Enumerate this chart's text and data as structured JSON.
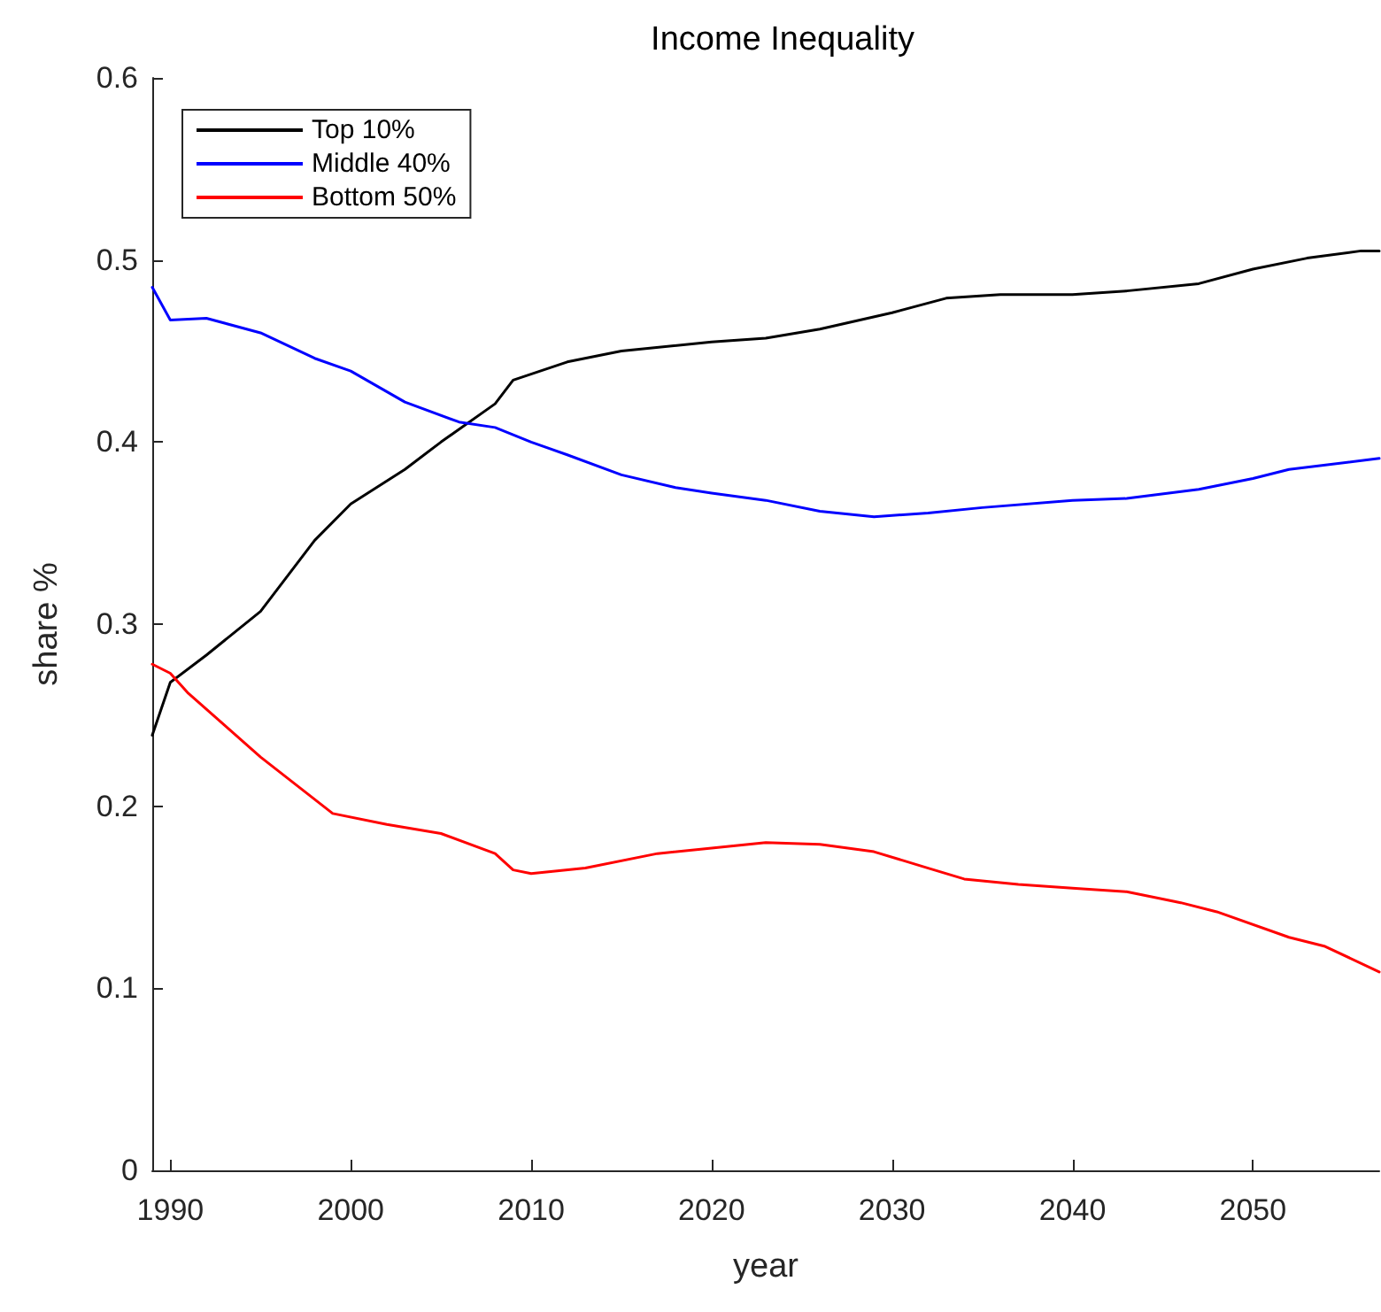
{
  "chart_data": {
    "type": "line",
    "title": "Income Inequality",
    "xlabel": "year",
    "ylabel": "share %",
    "xlim": [
      1989,
      2057
    ],
    "xticks": [
      1990,
      2000,
      2010,
      2020,
      2030,
      2040,
      2050
    ],
    "ylim": [
      0,
      0.6
    ],
    "yticks": [
      0,
      0.1,
      0.2,
      0.3,
      0.4,
      0.5,
      0.6
    ],
    "grid": false,
    "legend": "top left",
    "marker": "none",
    "line_style": "solid",
    "series": [
      {
        "name": "Top 10%",
        "color": "#000000",
        "x": [
          1989,
          1990,
          1992,
          1995,
          1998,
          2000,
          2003,
          2005,
          2008,
          2009,
          2012,
          2015,
          2020,
          2023,
          2026,
          2030,
          2033,
          2036,
          2040,
          2043,
          2047,
          2050,
          2053,
          2056,
          2057
        ],
        "values": [
          0.239,
          0.268,
          0.283,
          0.307,
          0.346,
          0.366,
          0.385,
          0.4,
          0.421,
          0.434,
          0.444,
          0.45,
          0.455,
          0.457,
          0.462,
          0.471,
          0.479,
          0.481,
          0.481,
          0.483,
          0.487,
          0.495,
          0.501,
          0.505,
          0.505
        ]
      },
      {
        "name": "Middle 40%",
        "color": "#0000ff",
        "x": [
          1989,
          1990,
          1992,
          1995,
          1998,
          2000,
          2003,
          2006,
          2008,
          2010,
          2012,
          2015,
          2018,
          2020,
          2023,
          2026,
          2029,
          2032,
          2035,
          2040,
          2043,
          2047,
          2050,
          2052,
          2057
        ],
        "values": [
          0.485,
          0.467,
          0.468,
          0.46,
          0.446,
          0.439,
          0.422,
          0.411,
          0.408,
          0.4,
          0.393,
          0.382,
          0.375,
          0.372,
          0.368,
          0.362,
          0.359,
          0.361,
          0.364,
          0.368,
          0.369,
          0.374,
          0.38,
          0.385,
          0.391
        ]
      },
      {
        "name": "Bottom 50%",
        "color": "#ff0000",
        "x": [
          1989,
          1990,
          1991,
          1995,
          1999,
          2002,
          2005,
          2008,
          2009,
          2010,
          2013,
          2017,
          2020,
          2023,
          2026,
          2029,
          2032,
          2034,
          2037,
          2040,
          2043,
          2046,
          2048,
          2052,
          2054,
          2057
        ],
        "values": [
          0.278,
          0.273,
          0.262,
          0.227,
          0.196,
          0.19,
          0.185,
          0.174,
          0.165,
          0.163,
          0.166,
          0.174,
          0.177,
          0.18,
          0.179,
          0.175,
          0.166,
          0.16,
          0.157,
          0.155,
          0.153,
          0.147,
          0.142,
          0.128,
          0.123,
          0.109
        ]
      }
    ]
  }
}
